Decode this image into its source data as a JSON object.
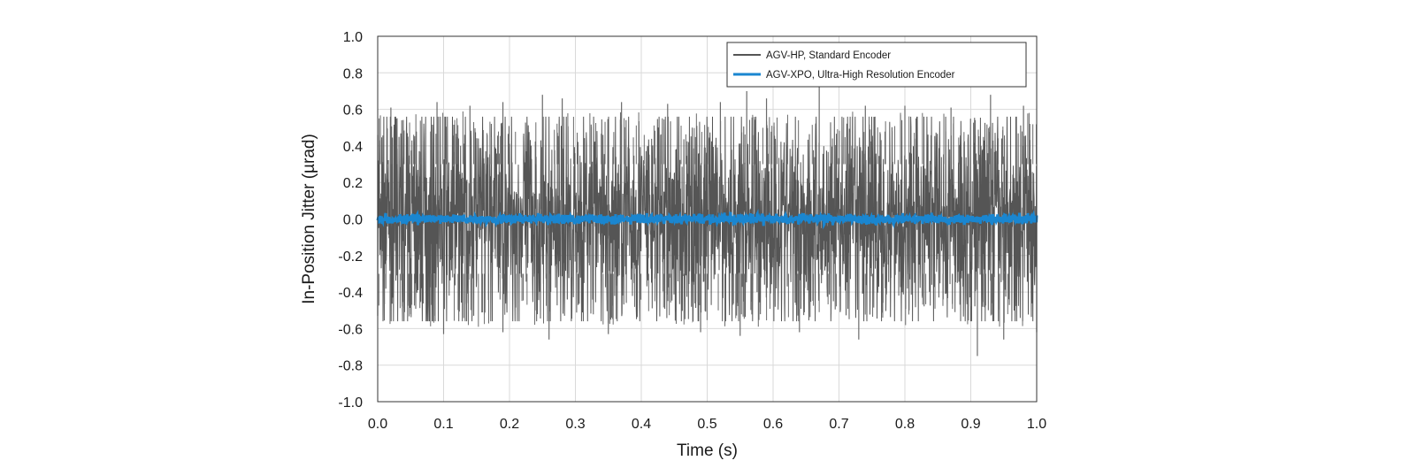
{
  "chart_data": {
    "type": "line",
    "title": "",
    "xlabel": "Time (s)",
    "ylabel": "In-Position Jitter (µrad)",
    "xlim": [
      0.0,
      1.0
    ],
    "ylim": [
      -1.0,
      1.0
    ],
    "x_ticks": [
      "0.0",
      "0.1",
      "0.2",
      "0.3",
      "0.4",
      "0.5",
      "0.6",
      "0.7",
      "0.8",
      "0.9",
      "1.0"
    ],
    "y_ticks": [
      "1.0",
      "0.8",
      "0.6",
      "0.4",
      "0.2",
      "0.0",
      "-0.2",
      "-0.4",
      "-0.6",
      "-0.8",
      "-1.0"
    ],
    "grid": true,
    "legend_position": "top-right",
    "series": [
      {
        "name": "AGV-HP, Standard Encoder",
        "color": "#555555",
        "typical_amplitude": 0.45,
        "peak_values": [
          {
            "x": 0.0,
            "y": 0.46
          },
          {
            "x": 0.02,
            "y": 0.61
          },
          {
            "x": 0.09,
            "y": 0.64
          },
          {
            "x": 0.14,
            "y": 0.62
          },
          {
            "x": 0.19,
            "y": 0.64
          },
          {
            "x": 0.25,
            "y": 0.68
          },
          {
            "x": 0.28,
            "y": 0.66
          },
          {
            "x": 0.37,
            "y": 0.64
          },
          {
            "x": 0.44,
            "y": 0.63
          },
          {
            "x": 0.52,
            "y": 0.64
          },
          {
            "x": 0.56,
            "y": 0.7
          },
          {
            "x": 0.59,
            "y": 0.66
          },
          {
            "x": 0.67,
            "y": 0.73
          },
          {
            "x": 0.74,
            "y": 0.62
          },
          {
            "x": 0.8,
            "y": 0.62
          },
          {
            "x": 0.87,
            "y": 0.61
          },
          {
            "x": 0.93,
            "y": 0.68
          },
          {
            "x": 0.98,
            "y": 0.62
          }
        ],
        "trough_values": [
          {
            "x": 0.0,
            "y": -0.53
          },
          {
            "x": 0.1,
            "y": -0.63
          },
          {
            "x": 0.19,
            "y": -0.62
          },
          {
            "x": 0.26,
            "y": -0.66
          },
          {
            "x": 0.35,
            "y": -0.63
          },
          {
            "x": 0.49,
            "y": -0.62
          },
          {
            "x": 0.55,
            "y": -0.64
          },
          {
            "x": 0.64,
            "y": -0.62
          },
          {
            "x": 0.73,
            "y": -0.66
          },
          {
            "x": 0.91,
            "y": -0.75
          },
          {
            "x": 0.95,
            "y": -0.66
          },
          {
            "x": 1.0,
            "y": -0.62
          }
        ]
      },
      {
        "name": "AGV-XPO, Ultra-High Resolution Encoder",
        "color": "#1a86d0",
        "typical_amplitude": 0.02
      }
    ]
  }
}
